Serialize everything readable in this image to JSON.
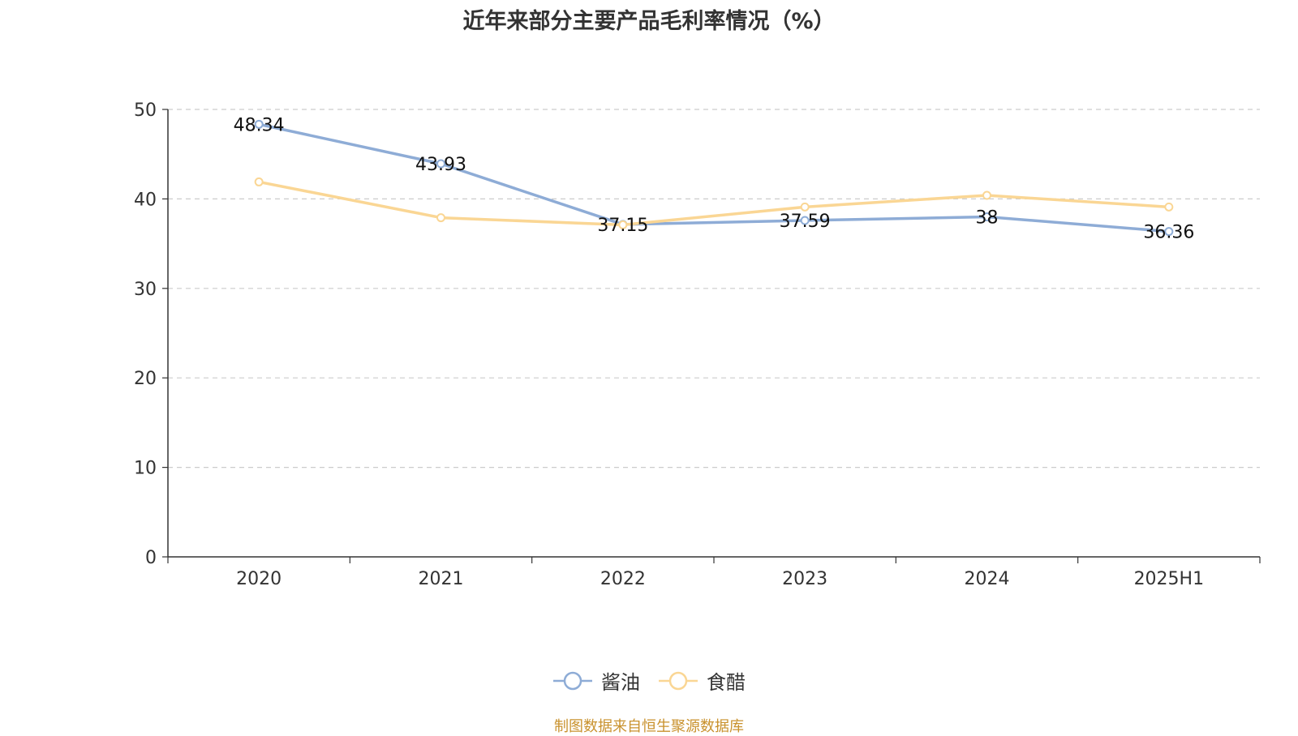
{
  "title": "近年来部分主要产品毛利率情况（%）",
  "source_note": "制图数据来自恒生聚源数据库",
  "chart_data": {
    "type": "line",
    "title": "近年来部分主要产品毛利率情况（%）",
    "categories": [
      "2020",
      "2021",
      "2022",
      "2023",
      "2024",
      "2025H1"
    ],
    "series": [
      {
        "name": "酱油",
        "color": "#8eacd6",
        "values": [
          48.34,
          43.93,
          37.15,
          37.59,
          38,
          36.36
        ],
        "labels": [
          "48.34",
          "43.93",
          "37.15",
          "37.59",
          "38",
          "36.36"
        ]
      },
      {
        "name": "食醋",
        "color": "#fad694",
        "values": [
          41.9,
          37.9,
          37.1,
          39.1,
          40.4,
          39.1
        ]
      }
    ],
    "ylim": [
      0,
      50
    ],
    "yticks": [
      0,
      10,
      20,
      30,
      40,
      50
    ],
    "grid": true,
    "legend_position": "bottom"
  }
}
